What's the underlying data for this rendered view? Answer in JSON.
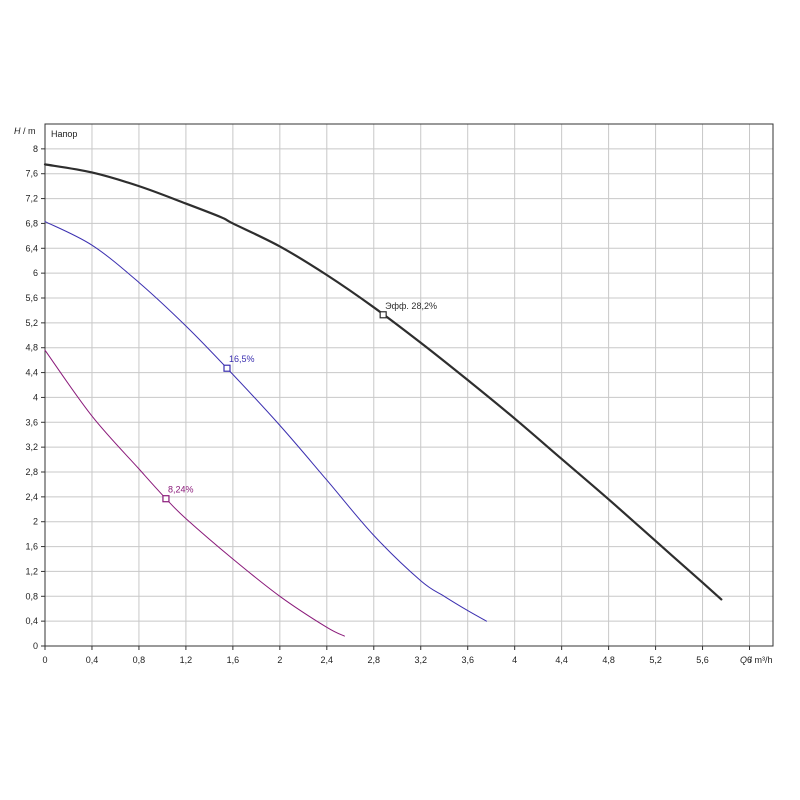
{
  "chart_data": {
    "type": "line",
    "x_axis": {
      "label_symbol": "Q",
      "label_unit": " / m³/h",
      "range": [
        0,
        6.2
      ],
      "ticks": [
        "0",
        "0,4",
        "0,8",
        "1,2",
        "1,6",
        "2",
        "2,4",
        "2,8",
        "3,2",
        "3,6",
        "4",
        "4,4",
        "4,8",
        "5,2",
        "5,6",
        "6"
      ],
      "tick_values": [
        0,
        0.4,
        0.8,
        1.2,
        1.6,
        2,
        2.4,
        2.8,
        3.2,
        3.6,
        4,
        4.4,
        4.8,
        5.2,
        5.6,
        6
      ]
    },
    "y_axis": {
      "label_symbol": "H",
      "label_unit": " / m",
      "range": [
        0,
        8.4
      ],
      "ticks": [
        "0",
        "0,4",
        "0,8",
        "1,2",
        "1,6",
        "2",
        "2,4",
        "2,8",
        "3,2",
        "3,6",
        "4",
        "4,4",
        "4,8",
        "5,2",
        "5,6",
        "6",
        "6,4",
        "6,8",
        "7,2",
        "7,6",
        "8"
      ],
      "tick_values": [
        0,
        0.4,
        0.8,
        1.2,
        1.6,
        2,
        2.4,
        2.8,
        3.2,
        3.6,
        4,
        4.4,
        4.8,
        5.2,
        5.6,
        6,
        6.4,
        6.8,
        7.2,
        7.6,
        8
      ]
    },
    "panel_title": "Напор",
    "grid": true,
    "series": [
      {
        "color": "#2e2e2e",
        "stroke_width": 2.2,
        "x": [
          0,
          0.4,
          0.8,
          1.2,
          1.5,
          1.6,
          2.0,
          2.4,
          2.8,
          3.2,
          3.6,
          4.0,
          4.4,
          4.8,
          5.2,
          5.6,
          5.76
        ],
        "y": [
          7.75,
          7.62,
          7.4,
          7.12,
          6.9,
          6.8,
          6.43,
          5.97,
          5.45,
          4.88,
          4.28,
          3.66,
          3.01,
          2.36,
          1.69,
          1.02,
          0.75
        ],
        "marker": {
          "x": 2.88,
          "y": 5.33
        },
        "marker_label": "Эфф.  28,2%"
      },
      {
        "color": "#3b2fb0",
        "stroke_width": 1,
        "x": [
          0,
          0.4,
          0.8,
          1.2,
          1.55,
          2.0,
          2.4,
          2.8,
          3.2,
          3.4,
          3.6,
          3.76
        ],
        "y": [
          6.83,
          6.45,
          5.85,
          5.15,
          4.47,
          3.55,
          2.67,
          1.78,
          1.05,
          0.8,
          0.57,
          0.4
        ],
        "marker": {
          "x": 1.55,
          "y": 4.47
        },
        "marker_label": "16,5%"
      },
      {
        "color": "#8a1a7a",
        "stroke_width": 1,
        "x": [
          0,
          0.4,
          0.8,
          1.03,
          1.2,
          1.6,
          2.0,
          2.4,
          2.55
        ],
        "y": [
          4.76,
          3.7,
          2.85,
          2.37,
          2.05,
          1.4,
          0.8,
          0.3,
          0.16
        ],
        "marker": {
          "x": 1.03,
          "y": 2.37
        },
        "marker_label": "8,24%"
      }
    ]
  }
}
